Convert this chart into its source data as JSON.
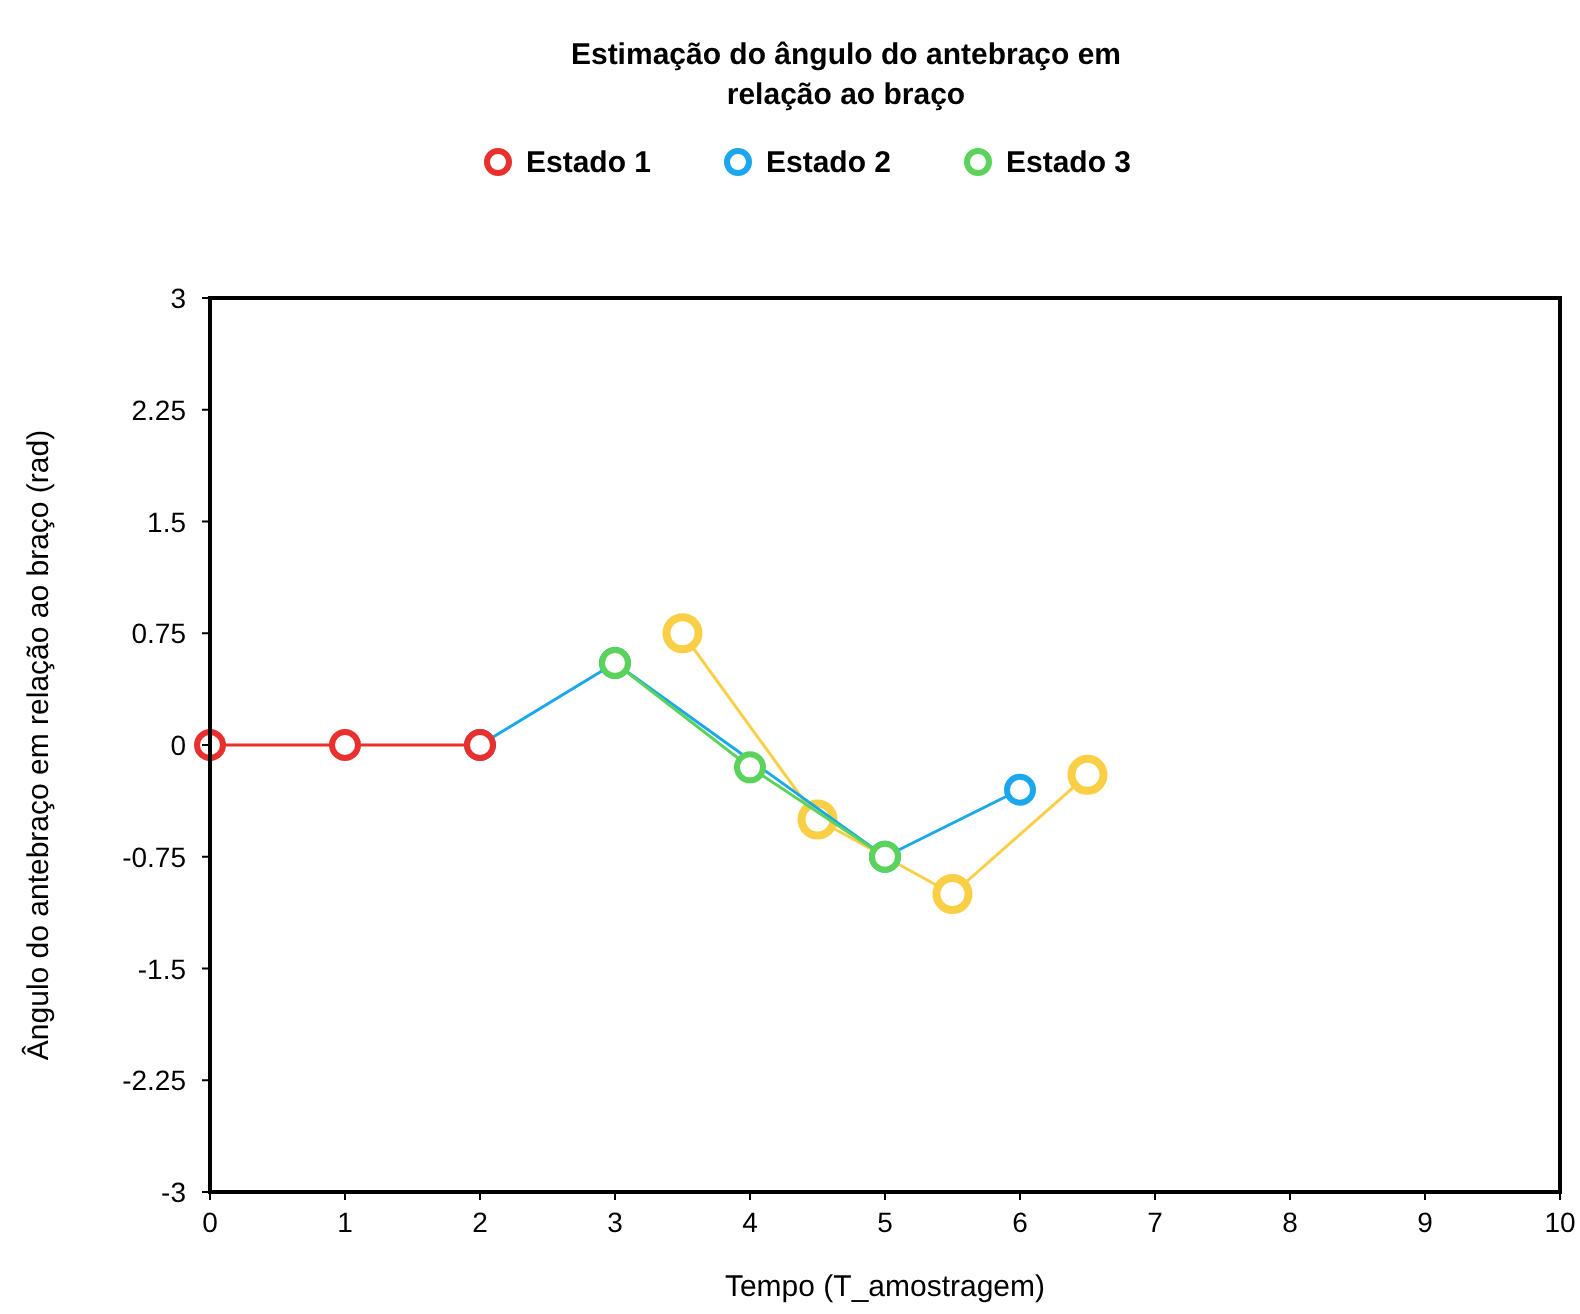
{
  "chart_data": {
    "type": "line",
    "title": "Estimação do ângulo do antebraço em relação ao braço",
    "xlabel": "Tempo (T_amostragem)",
    "ylabel": "Ângulo do antebraço em relação ao braço (rad)",
    "xlim": [
      0,
      10
    ],
    "xticks": [
      0,
      1,
      2,
      3,
      4,
      5,
      6,
      7,
      8,
      9,
      10
    ],
    "ylim": [
      -3,
      3
    ],
    "yticks": [
      -3,
      -2.25,
      -1.5,
      -0.75,
      0,
      0.75,
      1.5,
      2.25,
      3
    ],
    "series": [
      {
        "color": "#f9cf45",
        "x": [
          3.5,
          4.5,
          5.5,
          6.5
        ],
        "values": [
          0.75,
          -0.5,
          -1.0,
          -0.2
        ]
      },
      {
        "name": "Estado 2",
        "color": "#1aa7ec",
        "x": [
          2,
          3,
          5,
          6
        ],
        "values": [
          0,
          0.55,
          -0.75,
          -0.3
        ]
      },
      {
        "name": "Estado 3",
        "color": "#5bd35b",
        "x": [
          3,
          4,
          5
        ],
        "values": [
          0.55,
          -0.15,
          -0.75
        ]
      },
      {
        "name": "Estado 1",
        "color": "#e8312f",
        "x": [
          0,
          1,
          2
        ],
        "values": [
          0,
          0,
          0
        ]
      }
    ],
    "legend": "top",
    "grid": false,
    "marker": "circle",
    "line_style": "solid"
  }
}
